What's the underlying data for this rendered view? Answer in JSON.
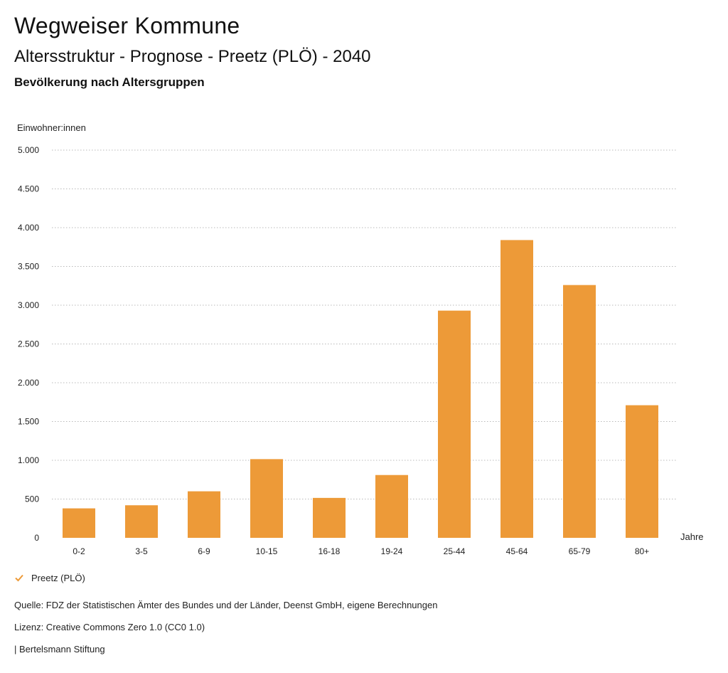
{
  "header": {
    "title": "Wegweiser Kommune",
    "subtitle": "Altersstruktur - Prognose - Preetz (PLÖ) - 2040",
    "subsubtitle": "Bevölkerung nach Altersgruppen"
  },
  "chart_data": {
    "type": "bar",
    "ylabel": "Einwohner:innen",
    "xlabel": "Jahre",
    "categories": [
      "0-2",
      "3-5",
      "6-9",
      "10-15",
      "16-18",
      "19-24",
      "25-44",
      "45-64",
      "65-79",
      "80+"
    ],
    "series": [
      {
        "name": "Preetz (PLÖ)",
        "values": [
          380,
          420,
          600,
          1015,
          515,
          810,
          2930,
          3840,
          3260,
          1710
        ]
      }
    ],
    "ylim": [
      0,
      5000
    ],
    "yticks": [
      0,
      500,
      1000,
      1500,
      2000,
      2500,
      3000,
      3500,
      4000,
      4500,
      5000
    ],
    "ytick_labels": [
      "0",
      "500",
      "1.000",
      "1.500",
      "2.000",
      "2.500",
      "3.000",
      "3.500",
      "4.000",
      "4.500",
      "5.000"
    ],
    "grid": true,
    "color": "#ED9A38",
    "legend_position": "bottom-left"
  },
  "legend": {
    "label": "Preetz (PLÖ)",
    "icon": "check-icon",
    "color": "#ED9A38"
  },
  "footer": {
    "source": "Quelle: FDZ der Statistischen Ämter des Bundes und der Länder, Deenst GmbH, eigene Berechnungen",
    "license": "Lizenz: Creative Commons Zero 1.0 (CC0 1.0)",
    "publisher": "| Bertelsmann Stiftung"
  }
}
